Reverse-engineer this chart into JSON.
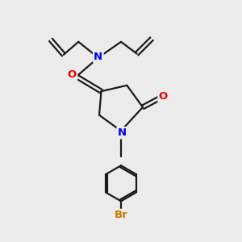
{
  "bg_color": "#ebebeb",
  "bond_color": "#1a1a1a",
  "N_color": "#0000ee",
  "O_color": "#ee0000",
  "Br_color": "#cc7700",
  "line_width": 1.6,
  "font_size_atom": 9.5,
  "xlim": [
    0,
    10
  ],
  "ylim": [
    0,
    12
  ],
  "figsize": [
    3.0,
    3.0
  ],
  "dpi": 100
}
